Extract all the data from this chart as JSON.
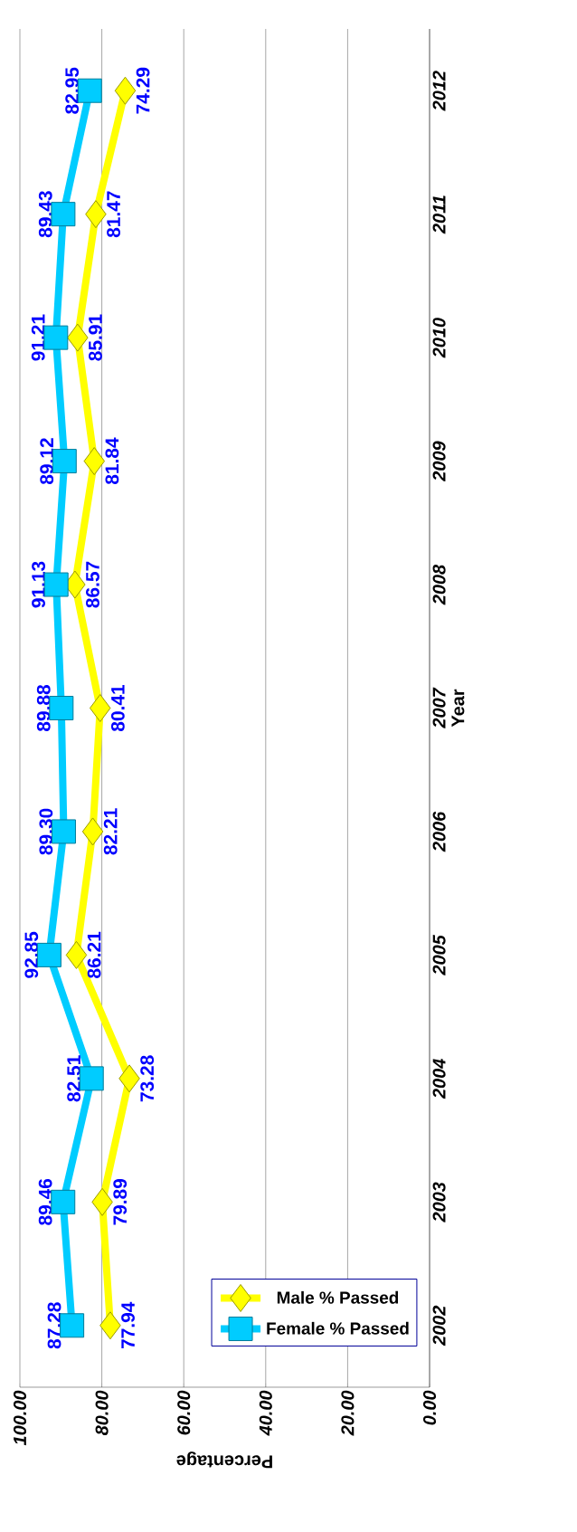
{
  "chart_data": {
    "type": "line",
    "orientation": "horizontal",
    "xlabel": "Percentage",
    "ylabel": "Year",
    "categories": [
      "2012",
      "2011",
      "2010",
      "2009",
      "2008",
      "2007",
      "2006",
      "2005",
      "2004",
      "2003",
      "2002"
    ],
    "series": [
      {
        "name": "Male % Passed",
        "color": "#ffff00",
        "marker": "diamond",
        "values": [
          74.29,
          81.47,
          85.91,
          81.84,
          86.57,
          80.41,
          82.21,
          86.21,
          73.28,
          79.89,
          77.94
        ],
        "value_labels": [
          "74.29",
          "81.47",
          "85.91",
          "81.84",
          "86.57",
          "80.41",
          "82.21",
          "86.21",
          "73.28",
          "79.89",
          "77.94"
        ]
      },
      {
        "name": "Female % Passed",
        "color": "#00ccff",
        "marker": "square",
        "values": [
          82.95,
          89.43,
          91.21,
          89.12,
          91.13,
          89.88,
          89.3,
          92.85,
          82.51,
          89.46,
          87.28
        ],
        "value_labels": [
          "82.95",
          "89.43",
          "91.21",
          "89.12",
          "91.13",
          "89.88",
          "89.30",
          "92.85",
          "82.51",
          "89.46",
          "87.28"
        ]
      }
    ],
    "xlim": [
      100,
      0
    ],
    "xticks": [
      {
        "value": 100,
        "label": "100.00"
      },
      {
        "value": 80,
        "label": "80.00"
      },
      {
        "value": 60,
        "label": "60.00"
      },
      {
        "value": 40,
        "label": "40.00"
      },
      {
        "value": 20,
        "label": "20.00"
      },
      {
        "value": 0,
        "label": "0.00"
      }
    ],
    "grid": "x",
    "legend": "bottom right",
    "line_style": "solid"
  }
}
